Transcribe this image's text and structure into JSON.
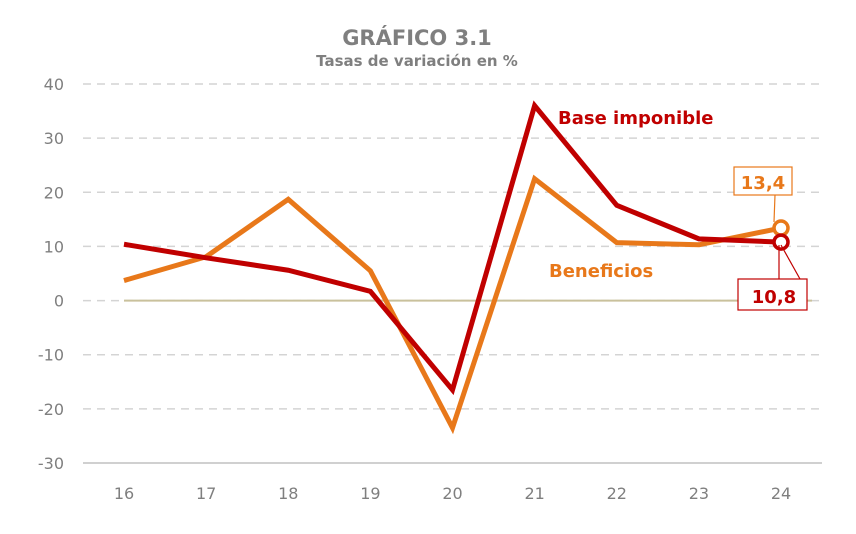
{
  "chart_data": {
    "type": "line",
    "title": "GRÁFICO 3.1",
    "subtitle": "Tasas de variación en %",
    "xlabel": "",
    "ylabel": "",
    "categories": [
      "16",
      "17",
      "18",
      "19",
      "20",
      "21",
      "22",
      "23",
      "24"
    ],
    "y_ticks": [
      "40",
      "30",
      "20",
      "10",
      "0",
      "-10",
      "-20",
      "-30"
    ],
    "ylim": [
      -30,
      40
    ],
    "grid": true,
    "series": [
      {
        "name": "Base imponible",
        "color": "#c00000",
        "values": [
          10.4,
          7.9,
          5.6,
          1.7,
          -16.5,
          36.0,
          17.6,
          11.4,
          10.8
        ],
        "end_label": "10,8"
      },
      {
        "name": "Beneficios",
        "color": "#e8781a",
        "values": [
          3.7,
          8.1,
          18.7,
          5.5,
          -23.5,
          22.5,
          10.7,
          10.3,
          13.4
        ],
        "end_label": "13,4"
      }
    ]
  }
}
